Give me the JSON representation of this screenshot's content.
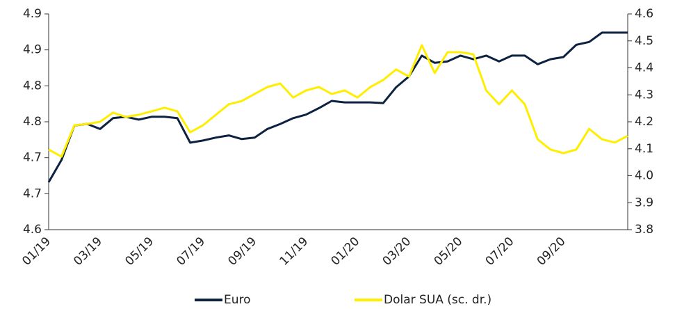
{
  "chart_data": {
    "type": "line",
    "categories": [
      "01/19",
      null,
      null,
      null,
      "03/19",
      null,
      null,
      null,
      "05/19",
      null,
      null,
      null,
      "07/19",
      null,
      null,
      null,
      "09/19",
      null,
      null,
      null,
      "11/19",
      null,
      null,
      null,
      "01/20",
      null,
      null,
      null,
      "03/20",
      null,
      null,
      null,
      "05/20",
      null,
      null,
      null,
      "07/20",
      null,
      null,
      null,
      "09/20",
      null,
      null,
      null,
      null,
      null
    ],
    "series": [
      {
        "name": "Euro",
        "color": "#0d2240",
        "values": [
          4.666,
          4.697,
          4.745,
          4.747,
          4.74,
          4.755,
          4.757,
          4.753,
          4.757,
          4.757,
          4.755,
          4.721,
          4.724,
          4.728,
          4.731,
          4.726,
          4.728,
          4.74,
          4.747,
          4.755,
          4.76,
          4.769,
          4.779,
          4.777,
          4.777,
          4.777,
          4.776,
          4.798,
          4.813,
          4.842,
          4.832,
          4.834,
          4.842,
          4.837,
          4.842,
          4.834,
          4.842,
          4.842,
          4.83,
          4.837,
          4.84,
          4.857,
          4.861,
          4.874,
          4.874,
          4.874
        ]
      },
      {
        "name": "Dolar SUA (sc. dr.)",
        "color": "#ffee00",
        "axis": "y2",
        "values": [
          4.097,
          4.071,
          4.187,
          4.192,
          4.2,
          4.234,
          4.218,
          4.226,
          4.239,
          4.252,
          4.239,
          4.161,
          4.187,
          4.226,
          4.265,
          4.277,
          4.303,
          4.329,
          4.342,
          4.29,
          4.316,
          4.329,
          4.303,
          4.316,
          4.29,
          4.329,
          4.355,
          4.394,
          4.368,
          4.484,
          4.381,
          4.458,
          4.458,
          4.45,
          4.316,
          4.265,
          4.316,
          4.265,
          4.135,
          4.097,
          4.084,
          4.097,
          4.174,
          4.135,
          4.123,
          4.148
        ]
      }
    ],
    "ylim": [
      4.6,
      4.9
    ],
    "yticks": [
      4.6,
      {
        "value": 4.65,
        "label": "4.7"
      },
      4.7,
      {
        "value": 4.75,
        "label": "4.8"
      },
      4.8,
      {
        "value": 4.85,
        "label": "4.9"
      },
      4.9
    ],
    "y2lim": [
      3.8,
      4.6
    ],
    "y2ticks": [
      3.8,
      3.9,
      {
        "value": 4.0,
        "label": "4.0"
      },
      4.1,
      4.2,
      4.3,
      4.4,
      4.5,
      4.6
    ],
    "legend": "bottom"
  }
}
